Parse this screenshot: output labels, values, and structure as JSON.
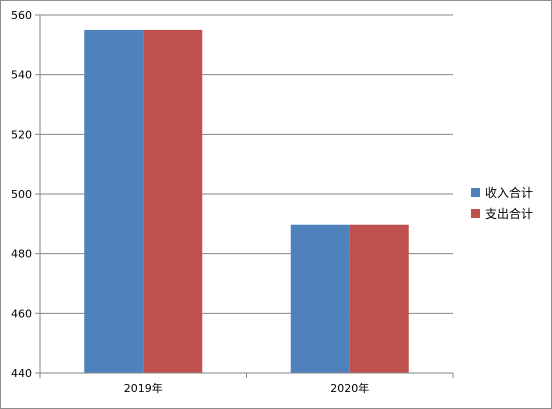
{
  "chart_data": {
    "type": "bar",
    "categories": [
      "2019年",
      "2020年"
    ],
    "series": [
      {
        "name": "收入合计",
        "color": "#4F81BD",
        "values": [
          555,
          489.7
        ]
      },
      {
        "name": "支出合计",
        "color": "#C0504D",
        "values": [
          555,
          489.7
        ]
      }
    ],
    "ylim": [
      440,
      560
    ],
    "yticks": [
      "440",
      "460",
      "480",
      "500",
      "520",
      "540",
      "560"
    ],
    "grid": true,
    "legend_position": "right"
  }
}
